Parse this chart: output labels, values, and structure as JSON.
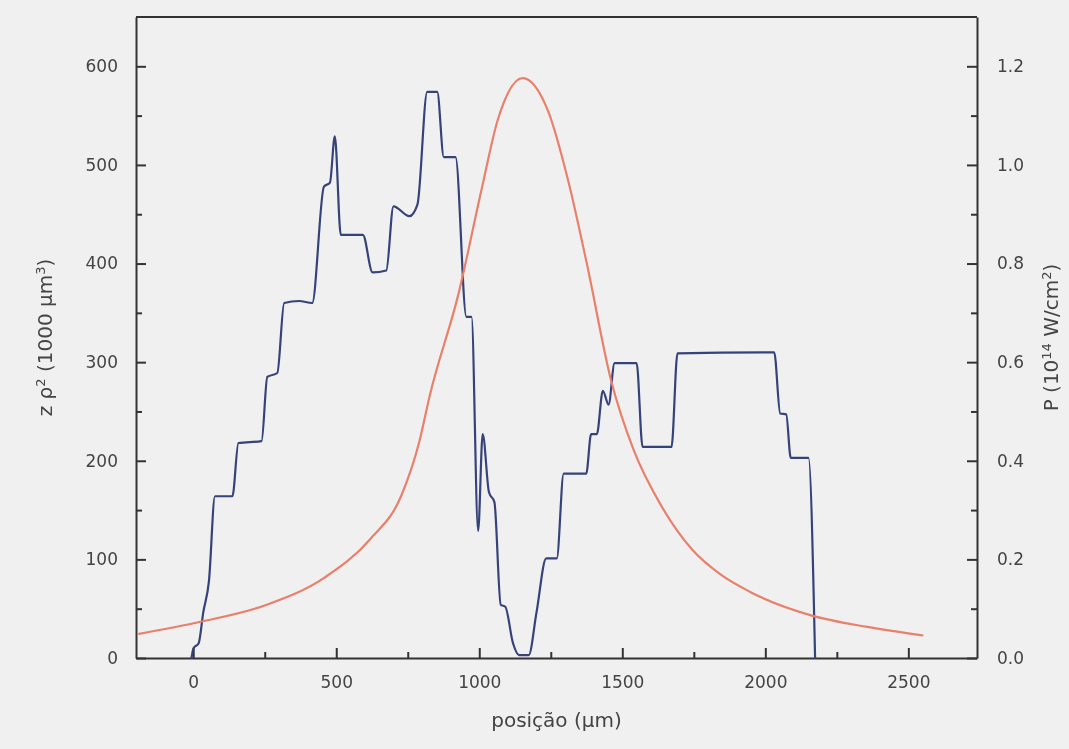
{
  "chart_data": {
    "type": "line",
    "xlabel": "posição (μm)",
    "ylabel": "z ρ$^{2}$ (1000 μm$^{3}$)",
    "y2label": "P (10$^{14}$ W/cm$^{2}$)",
    "xlim": [
      -200,
      2740
    ],
    "ylim": [
      0,
      650
    ],
    "y2lim": [
      0,
      1.3
    ],
    "xticks": [
      0,
      {
        "value": 250,
        "label": null
      },
      500,
      {
        "value": 750,
        "label": null
      },
      1000,
      {
        "value": 1250,
        "label": null
      },
      1500,
      {
        "value": 1750,
        "label": null
      },
      2000,
      {
        "value": 2250,
        "label": null
      },
      2500
    ],
    "yticks": [
      0,
      {
        "value": 50,
        "label": null
      },
      100,
      {
        "value": 150,
        "label": null
      },
      200,
      {
        "value": 250,
        "label": null
      },
      300,
      {
        "value": 350,
        "label": null
      },
      400,
      {
        "value": 450,
        "label": null
      },
      500,
      {
        "value": 550,
        "label": null
      },
      600
    ],
    "y2ticks": [
      {
        "value": 0,
        "label": "0.0"
      },
      {
        "value": 0.1,
        "label": null
      },
      {
        "value": 0.2,
        "label": "0.2"
      },
      {
        "value": 0.3,
        "label": null
      },
      {
        "value": 0.4,
        "label": "0.4"
      },
      {
        "value": 0.5,
        "label": null
      },
      {
        "value": 0.6,
        "label": "0.6"
      },
      {
        "value": 0.7,
        "label": null
      },
      {
        "value": 0.8,
        "label": "0.8"
      },
      {
        "value": 0.9,
        "label": null
      },
      {
        "value": 1.0,
        "label": "1.0"
      },
      {
        "value": 1.1,
        "label": null
      },
      {
        "value": 1.2,
        "label": "1.2"
      }
    ],
    "grid": false,
    "marker": "none",
    "line_style": "solid",
    "series": [
      {
        "color": "#36427a",
        "axis": "y",
        "x": [
          -6,
          1,
          19,
          35,
          55,
          76,
          137,
          158,
          239,
          259,
          294,
          318,
          370,
          416,
          457,
          478,
          495,
          516,
          593,
          627,
          675,
          700,
          756,
          784,
          818,
          853,
          876,
          917,
          955,
          973,
          996,
          1012,
          1034,
          1053,
          1075,
          1091,
          1118,
          1139,
          1173,
          1200,
          1234,
          1271,
          1295,
          1374,
          1391,
          1411,
          1432,
          1452,
          1473,
          1550,
          1571,
          1672,
          1693,
          2031,
          2052,
          2073,
          2089,
          2151,
          2174
        ],
        "values": [
          0,
          10,
          15,
          46,
          78,
          164,
          164,
          218,
          220,
          285,
          289,
          360,
          362,
          360,
          478,
          482,
          529,
          429,
          429,
          391,
          393,
          458,
          448,
          460,
          574,
          574,
          508,
          508,
          346,
          346,
          129,
          227,
          168,
          158,
          54,
          52,
          15,
          3,
          3,
          46,
          101,
          101,
          187,
          187,
          227,
          227,
          271,
          257,
          299,
          299,
          214,
          214,
          309,
          310,
          248,
          247,
          203,
          203,
          0
        ]
      },
      {
        "color": "#e8806c",
        "axis": "y2",
        "x": [
          -189,
          21,
          252,
          459,
          620,
          728,
          791,
          826,
          928,
          1008,
          1064,
          1152,
          1240,
          1310,
          1376,
          1460,
          1541,
          1635,
          1744,
          1842,
          1947,
          2157,
          2356,
          2549
        ],
        "values": [
          0.049,
          0.073,
          0.107,
          0.163,
          0.242,
          0.33,
          0.44,
          0.53,
          0.74,
          0.95,
          1.09,
          1.176,
          1.11,
          0.97,
          0.8,
          0.565,
          0.42,
          0.31,
          0.22,
          0.17,
          0.134,
          0.087,
          0.063,
          0.046
        ]
      }
    ]
  }
}
